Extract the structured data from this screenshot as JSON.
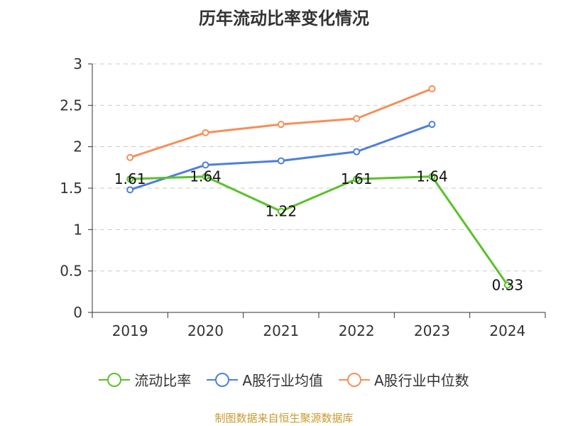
{
  "title": "历年流动比率变化情况",
  "source_note": "制图数据来自恒生聚源数据库",
  "chart_data": {
    "type": "line",
    "title": "历年流动比率变化情况",
    "categories": [
      "2019",
      "2020",
      "2021",
      "2022",
      "2023",
      "2024"
    ],
    "ylim": [
      0,
      3
    ],
    "yticks": [
      "0",
      "0.5",
      "1",
      "1.5",
      "2",
      "2.5",
      "3"
    ],
    "grid": true,
    "legend_position": "bottom",
    "series": [
      {
        "name": "流动比率",
        "color": "#5ac12b",
        "values": [
          1.61,
          1.64,
          1.22,
          1.61,
          1.64,
          0.33
        ],
        "labels": [
          "1.61",
          "1.64",
          "1.22",
          "1.61",
          "1.64",
          "0.33"
        ]
      },
      {
        "name": "A股行业均值",
        "color": "#4e7fdc",
        "values": [
          1.48,
          1.78,
          1.83,
          1.94,
          2.27,
          null
        ]
      },
      {
        "name": "A股行业中位数",
        "color": "#f58f5a",
        "values": [
          1.87,
          2.17,
          2.27,
          2.34,
          2.7,
          null
        ]
      }
    ]
  }
}
